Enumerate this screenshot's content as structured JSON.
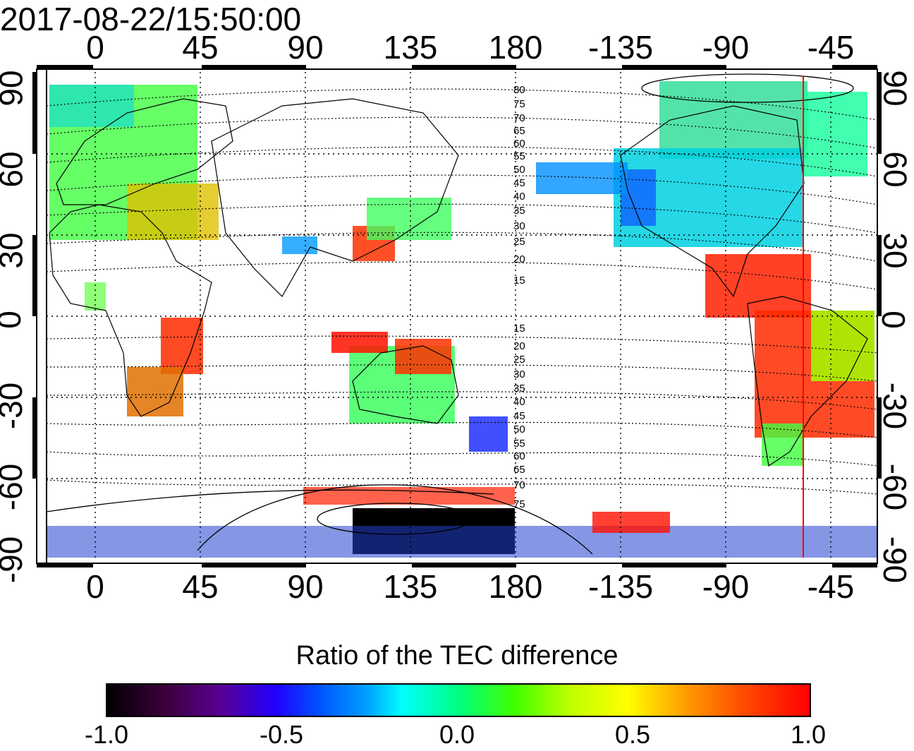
{
  "timestamp": "2017-08-22/15:50:00",
  "lon_ticks": [
    "0",
    "45",
    "90",
    "135",
    "180",
    "-135",
    "-90",
    "-45"
  ],
  "lat_ticks": [
    "90",
    "60",
    "30",
    "0",
    "-30",
    "-60",
    "-90"
  ],
  "contour_labels_north": [
    "80",
    "75",
    "70",
    "65",
    "60",
    "55",
    "50",
    "45",
    "40",
    "35",
    "30",
    "25",
    "20",
    "15"
  ],
  "contour_labels_south": [
    "15",
    "20",
    "25",
    "30",
    "35",
    "40",
    "45",
    "50",
    "55",
    "60",
    "65",
    "70",
    "75"
  ],
  "colorbar": {
    "title": "Ratio of the TEC difference",
    "ticks": [
      "-1.0",
      "-0.5",
      "0.0",
      "0.5",
      "1.0"
    ],
    "range": [
      -1.0,
      1.0
    ]
  },
  "colors": {
    "positive": "#ff0000",
    "neutral": "#00ff80",
    "negative": "#0000ff",
    "strong_negative": "#000000",
    "terminator": "#ff0000"
  },
  "chart_data": {
    "type": "heatmap",
    "title": "2017-08-22/15:50:00",
    "xlabel": "",
    "ylabel": "",
    "xlim": [
      -20,
      340
    ],
    "ylim": [
      -90,
      90
    ],
    "x_tick_labels": [
      "0",
      "45",
      "90",
      "135",
      "180",
      "-135",
      "-90",
      "-45"
    ],
    "y_tick_labels": [
      "90",
      "60",
      "30",
      "0",
      "-30",
      "-60",
      "-90"
    ],
    "grid": true,
    "colorbar_label": "Ratio of the TEC difference",
    "colorbar_range": [
      -1.0,
      1.0
    ],
    "red_line_longitude": -57
  }
}
